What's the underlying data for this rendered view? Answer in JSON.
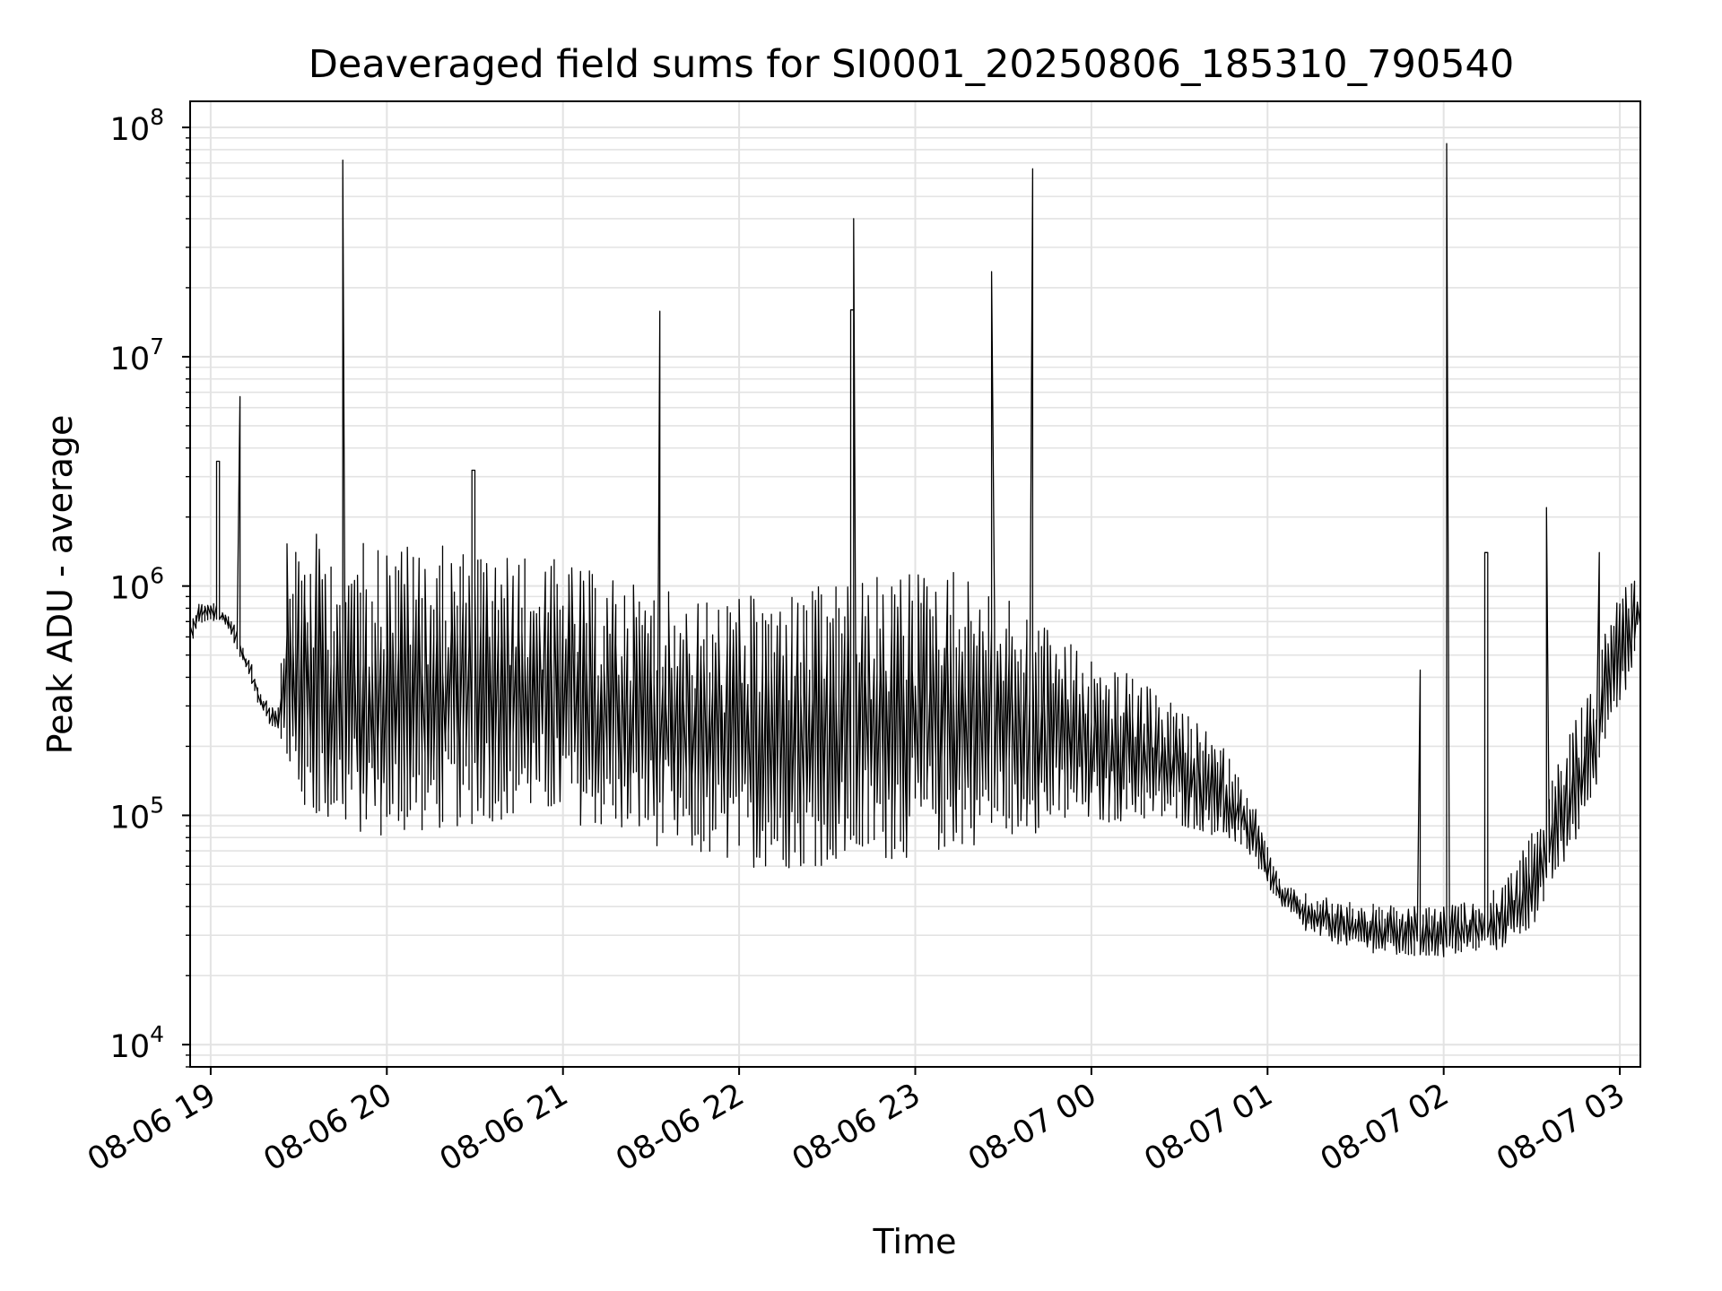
{
  "chart_data": {
    "type": "line",
    "title": "Deaveraged field sums for SI0001_20250806_185310_790540",
    "xlabel": "Time",
    "ylabel": "Peak ADU - average",
    "yscale": "log",
    "ylim": [
      8000,
      130000000
    ],
    "xlim": [
      "2025-08-06 18:53",
      "2025-08-07 03:07"
    ],
    "grid": true,
    "line_color": "#000000",
    "x_ticks": [
      {
        "t": "2025-08-06 19:00",
        "label": "08-06 19"
      },
      {
        "t": "2025-08-06 20:00",
        "label": "08-06 20"
      },
      {
        "t": "2025-08-06 21:00",
        "label": "08-06 21"
      },
      {
        "t": "2025-08-06 22:00",
        "label": "08-06 22"
      },
      {
        "t": "2025-08-06 23:00",
        "label": "08-06 23"
      },
      {
        "t": "2025-08-07 00:00",
        "label": "08-07 00"
      },
      {
        "t": "2025-08-07 01:00",
        "label": "08-07 01"
      },
      {
        "t": "2025-08-07 02:00",
        "label": "08-07 02"
      },
      {
        "t": "2025-08-07 03:00",
        "label": "08-07 03"
      }
    ],
    "y_ticks": [
      {
        "value": 10000,
        "base": "10",
        "exp": "4"
      },
      {
        "value": 100000,
        "base": "10",
        "exp": "5"
      },
      {
        "value": 1000000,
        "base": "10",
        "exp": "6"
      },
      {
        "value": 10000000,
        "base": "10",
        "exp": "7"
      },
      {
        "value": 100000000,
        "base": "10",
        "exp": "8"
      }
    ],
    "series": [
      {
        "x": [
          "2025-08-06 18:53",
          "2025-08-06 18:55",
          "2025-08-06 18:56",
          "2025-08-06 18:58",
          "2025-08-06 19:00",
          "2025-08-06 19:02",
          "2025-08-06 19:04",
          "2025-08-06 19:06",
          "2025-08-06 19:08",
          "2025-08-06 19:10",
          "2025-08-06 19:12",
          "2025-08-06 19:14",
          "2025-08-06 19:17",
          "2025-08-06 19:20",
          "2025-08-06 19:22",
          "2025-08-06 19:24",
          "2025-08-06 19:26",
          "2025-08-06 19:28",
          "2025-08-06 19:30",
          "2025-08-06 19:32",
          "2025-08-06 19:35",
          "2025-08-06 19:40",
          "2025-08-06 19:45",
          "2025-08-06 19:50",
          "2025-08-06 19:55",
          "2025-08-06 20:00",
          "2025-08-06 20:10",
          "2025-08-06 20:20",
          "2025-08-06 20:30",
          "2025-08-06 20:40",
          "2025-08-06 20:50",
          "2025-08-06 21:00",
          "2025-08-06 21:15",
          "2025-08-06 21:30",
          "2025-08-06 21:45",
          "2025-08-06 22:00",
          "2025-08-06 22:15",
          "2025-08-06 22:30",
          "2025-08-06 22:45",
          "2025-08-06 23:00",
          "2025-08-06 23:15",
          "2025-08-06 23:30",
          "2025-08-06 23:45",
          "2025-08-07 00:00",
          "2025-08-07 00:15",
          "2025-08-07 00:30",
          "2025-08-07 00:45",
          "2025-08-07 00:55",
          "2025-08-07 01:05",
          "2025-08-07 01:15",
          "2025-08-07 01:30",
          "2025-08-07 01:45",
          "2025-08-07 02:00",
          "2025-08-07 02:10",
          "2025-08-07 02:15",
          "2025-08-07 02:20",
          "2025-08-07 02:25",
          "2025-08-07 02:30",
          "2025-08-07 02:35",
          "2025-08-07 02:40",
          "2025-08-07 02:45",
          "2025-08-07 02:50",
          "2025-08-07 02:53",
          "2025-08-07 02:55",
          "2025-08-07 02:57",
          "2025-08-07 03:00",
          "2025-08-07 03:02",
          "2025-08-07 03:04",
          "2025-08-07 03:06",
          "2025-08-07 03:07"
        ],
        "lo": [
          500000,
          600000,
          650000,
          700000,
          700000,
          700000,
          700000,
          650000,
          600000,
          500000,
          450000,
          400000,
          300000,
          260000,
          240000,
          230000,
          150000,
          130000,
          110000,
          100000,
          95000,
          90000,
          85000,
          82000,
          80000,
          80000,
          82000,
          85000,
          90000,
          95000,
          100000,
          95000,
          85000,
          75000,
          65000,
          60000,
          58000,
          60000,
          62000,
          65000,
          70000,
          80000,
          85000,
          90000,
          95000,
          90000,
          80000,
          65000,
          40000,
          30000,
          26000,
          24000,
          24000,
          25000,
          25000,
          26000,
          28000,
          32000,
          40000,
          55000,
          75000,
          100000,
          150000,
          200000,
          250000,
          300000,
          350000,
          400000,
          500000,
          600000
        ],
        "hi": [
          800000,
          800000,
          850000,
          850000,
          850000,
          850000,
          800000,
          750000,
          700000,
          600000,
          520000,
          480000,
          350000,
          320000,
          300000,
          350000,
          1500000,
          1600000,
          1650000,
          1700000,
          1700000,
          1700000,
          1650000,
          1600000,
          1600000,
          1600000,
          1550000,
          1500000,
          1450000,
          1400000,
          1350000,
          1300000,
          1100000,
          1000000,
          900000,
          900000,
          950000,
          1000000,
          1100000,
          1200000,
          1200000,
          900000,
          700000,
          500000,
          400000,
          300000,
          200000,
          120000,
          50000,
          45000,
          42000,
          40000,
          40000,
          42000,
          45000,
          50000,
          60000,
          80000,
          120000,
          180000,
          250000,
          350000,
          450000,
          600000,
          800000,
          1000000,
          1100000,
          1200000,
          1100000,
          1000000
        ]
      }
    ],
    "spikes": [
      {
        "x": "2025-08-06 19:03",
        "y": 3500000
      },
      {
        "x": "2025-08-06 19:10",
        "y": 6700000
      },
      {
        "x": "2025-08-06 19:46",
        "y": 72000000
      },
      {
        "x": "2025-08-06 20:30",
        "y": 3200000
      },
      {
        "x": "2025-08-06 21:33",
        "y": 15800000
      },
      {
        "x": "2025-08-06 22:40",
        "y": 40000000
      },
      {
        "x": "2025-08-06 22:39",
        "y": 16000000
      },
      {
        "x": "2025-08-06 23:27",
        "y": 23500000
      },
      {
        "x": "2025-08-06 23:40",
        "y": 66000000
      },
      {
        "x": "2025-08-07 02:02",
        "y": 85000000
      },
      {
        "x": "2025-08-07 02:15",
        "y": 1400000
      },
      {
        "x": "2025-08-07 02:36",
        "y": 2200000
      },
      {
        "x": "2025-08-07 01:52",
        "y": 430000
      },
      {
        "x": "2025-08-07 02:53",
        "y": 1400000
      }
    ]
  }
}
